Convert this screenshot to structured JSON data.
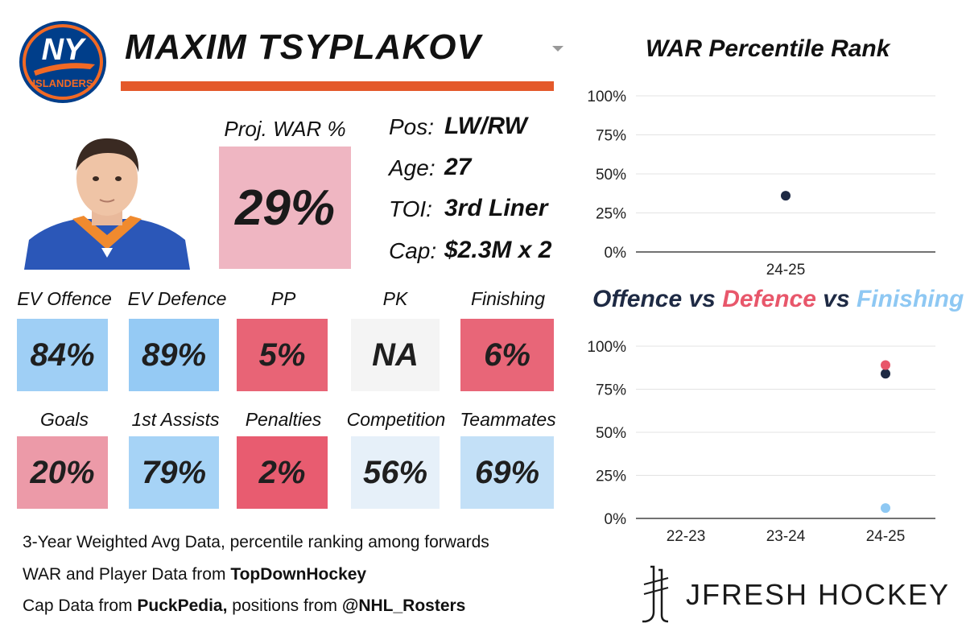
{
  "player": {
    "name": "MAXIM TSYPLAKOV",
    "team_logo_text": "NY ISLANDERS",
    "proj_war_label": "Proj. WAR %",
    "proj_war_value": "29%",
    "info": [
      {
        "label": "Pos:",
        "value": "LW/RW"
      },
      {
        "label": "Age:",
        "value": "27"
      },
      {
        "label": "TOI:",
        "value": "3rd Liner"
      },
      {
        "label": "Cap:",
        "value": "$2.3M x 2"
      }
    ]
  },
  "colors": {
    "accent_orange": "#e4592a",
    "navy": "#1e2a44",
    "red": "#e8576b",
    "light_blue": "#8ec8f3",
    "proj_box": "#efb6c2"
  },
  "tiles_row1": [
    {
      "label": "EV Offence",
      "value": "84%",
      "color": "#9fcff5"
    },
    {
      "label": "EV Defence",
      "value": "89%",
      "color": "#95caf4"
    },
    {
      "label": "PP",
      "value": "5%",
      "color": "#e86476"
    },
    {
      "label": "PK",
      "value": "NA",
      "color": "#f4f4f4"
    },
    {
      "label": "Finishing",
      "value": "6%",
      "color": "#e86678"
    }
  ],
  "tiles_row2": [
    {
      "label": "Goals",
      "value": "20%",
      "color": "#ec9aa8"
    },
    {
      "label": "1st Assists",
      "value": "79%",
      "color": "#a6d3f6"
    },
    {
      "label": "Penalties",
      "value": "2%",
      "color": "#e85c70"
    },
    {
      "label": "Competition",
      "value": "56%",
      "color": "#e6f0f9"
    },
    {
      "label": "Teammates",
      "value": "69%",
      "color": "#c3e0f7"
    }
  ],
  "footer": {
    "line1": "3-Year Weighted Avg Data, percentile ranking among forwards",
    "line2_prefix": "WAR and Player Data from ",
    "line2_source": "TopDownHockey",
    "line3_prefix": "Cap Data from ",
    "line3_source1": "PuckPedia,",
    "line3_mid": " positions from ",
    "line3_source2": "@NHL_Rosters"
  },
  "brand": "JFRESH HOCKEY",
  "chart_data": [
    {
      "type": "scatter",
      "title": "WAR Percentile Rank",
      "categories": [
        "24-25"
      ],
      "yticks": [
        "0%",
        "25%",
        "50%",
        "75%",
        "100%"
      ],
      "ylim": [
        0,
        100
      ],
      "grid": true,
      "series": [
        {
          "values": [
            36
          ],
          "color": "#1e2a44"
        }
      ]
    },
    {
      "type": "scatter",
      "title_parts": [
        {
          "text": "Offence",
          "color": "#1e2a44"
        },
        {
          "text": " vs ",
          "color": "#1e2a44"
        },
        {
          "text": "Defence",
          "color": "#e8576b"
        },
        {
          "text": " vs ",
          "color": "#1e2a44"
        },
        {
          "text": "Finishing",
          "color": "#8ec8f3"
        }
      ],
      "categories": [
        "22-23",
        "23-24",
        "24-25"
      ],
      "yticks": [
        "0%",
        "25%",
        "50%",
        "75%",
        "100%"
      ],
      "ylim": [
        0,
        100
      ],
      "grid": true,
      "series": [
        {
          "name": "Offence",
          "values": [
            null,
            null,
            84
          ],
          "color": "#1e2a44"
        },
        {
          "name": "Defence",
          "values": [
            null,
            null,
            89
          ],
          "color": "#e8576b"
        },
        {
          "name": "Finishing",
          "values": [
            null,
            null,
            6
          ],
          "color": "#8ec8f3"
        }
      ]
    }
  ]
}
